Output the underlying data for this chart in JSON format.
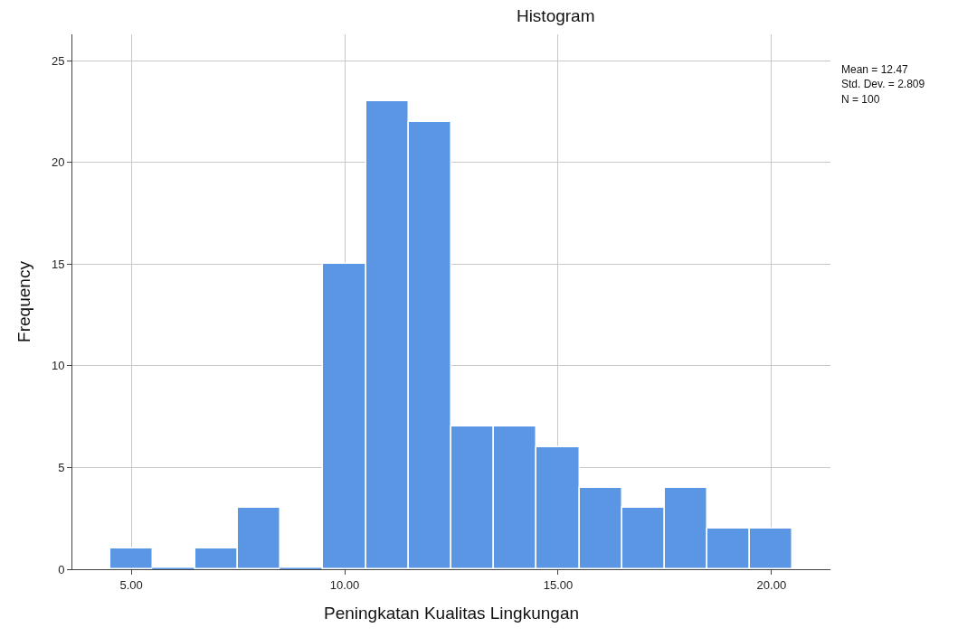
{
  "chart_data": {
    "type": "histogram",
    "title": "Histogram",
    "xlabel": "Peningkatan Kualitas Lingkungan",
    "ylabel": "Frequency",
    "bins": [
      4.5,
      5.5,
      6.5,
      7.5,
      8.5,
      9.5,
      10.5,
      11.5,
      12.5,
      13.5,
      14.5,
      15.5,
      16.5,
      17.5,
      18.5,
      19.5,
      20.5
    ],
    "values": [
      1,
      0,
      1,
      3,
      0,
      15,
      23,
      22,
      7,
      7,
      6,
      4,
      3,
      4,
      2,
      2
    ],
    "color": "#5a96e3",
    "xlim": [
      3.62,
      21.38
    ],
    "xticks": [
      {
        "value": 5,
        "label": "5.00"
      },
      {
        "value": 10,
        "label": "10.00"
      },
      {
        "value": 15,
        "label": "15.00"
      },
      {
        "value": 20,
        "label": "20.00"
      }
    ],
    "ylim": [
      0,
      26.3
    ],
    "yticks": [
      0,
      5,
      10,
      15,
      20,
      25
    ],
    "grid": true,
    "annotations": [
      "Mean = 12.47",
      "Std. Dev. = 2.809",
      "N = 100"
    ]
  }
}
